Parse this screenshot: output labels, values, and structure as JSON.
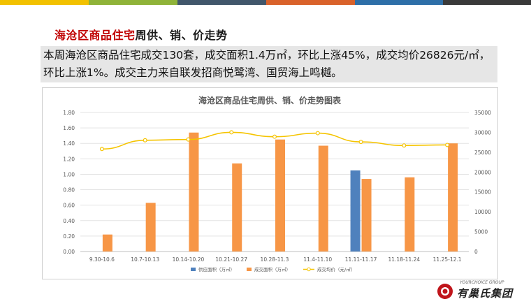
{
  "header": {
    "title_highlight": "海沧区商品住宅",
    "title_rest": "周供、销、价走势",
    "stripe_colors": [
      "#f2c100",
      "#8fb339",
      "#41576b",
      "#d9622b",
      "#2e6fa8",
      "#3a3a3a"
    ]
  },
  "summary": {
    "text": "本周海沧区商品住宅成交130套，成交面积1.4万㎡，环比上涨45%，成交均价26826元/㎡，环比上涨1%。成交主力来自联发招商悦鹭湾、国贸海上鸣樾。"
  },
  "chart_data": {
    "type": "bar",
    "title": "海沧区商品住宅周供、销、价走势图表",
    "categories": [
      "9.30-10.6",
      "10.7-10.13",
      "10.14-10.20",
      "10.21-10.27",
      "10.28-11.3",
      "11.4-11.10",
      "11.11-11.17",
      "11.18-11.24",
      "11.25-12.1"
    ],
    "left_axis": {
      "ylim": [
        0,
        1.8
      ],
      "ticks": [
        "0.00",
        "0.20",
        "0.40",
        "0.60",
        "0.80",
        "1.00",
        "1.20",
        "1.40",
        "1.60",
        "1.80"
      ]
    },
    "right_axis": {
      "ylim": [
        0,
        35000
      ],
      "ticks": [
        "0",
        "5000",
        "10000",
        "15000",
        "20000",
        "25000",
        "30000",
        "35000"
      ]
    },
    "series": [
      {
        "name": "供应面积（万㎡）",
        "kind": "bar",
        "axis": "left",
        "color": "#4f81bd",
        "values": [
          0,
          0,
          0,
          0,
          0,
          0,
          1.05,
          0,
          0
        ]
      },
      {
        "name": "成交面积（万㎡）",
        "kind": "bar",
        "axis": "left",
        "color": "#f79646",
        "values": [
          0.22,
          0.63,
          1.54,
          1.14,
          1.45,
          1.37,
          0.94,
          0.96,
          1.4
        ]
      },
      {
        "name": "成交均价（元/㎡）",
        "kind": "line",
        "axis": "right",
        "color": "#f5c400",
        "values": [
          25800,
          28000,
          28200,
          30000,
          28900,
          29800,
          27600,
          26700,
          26826
        ]
      }
    ],
    "legend_position": "bottom",
    "grid": true
  },
  "logo": {
    "sub": "YOURCHOICE GROUP",
    "name": "有巢氏集团"
  }
}
